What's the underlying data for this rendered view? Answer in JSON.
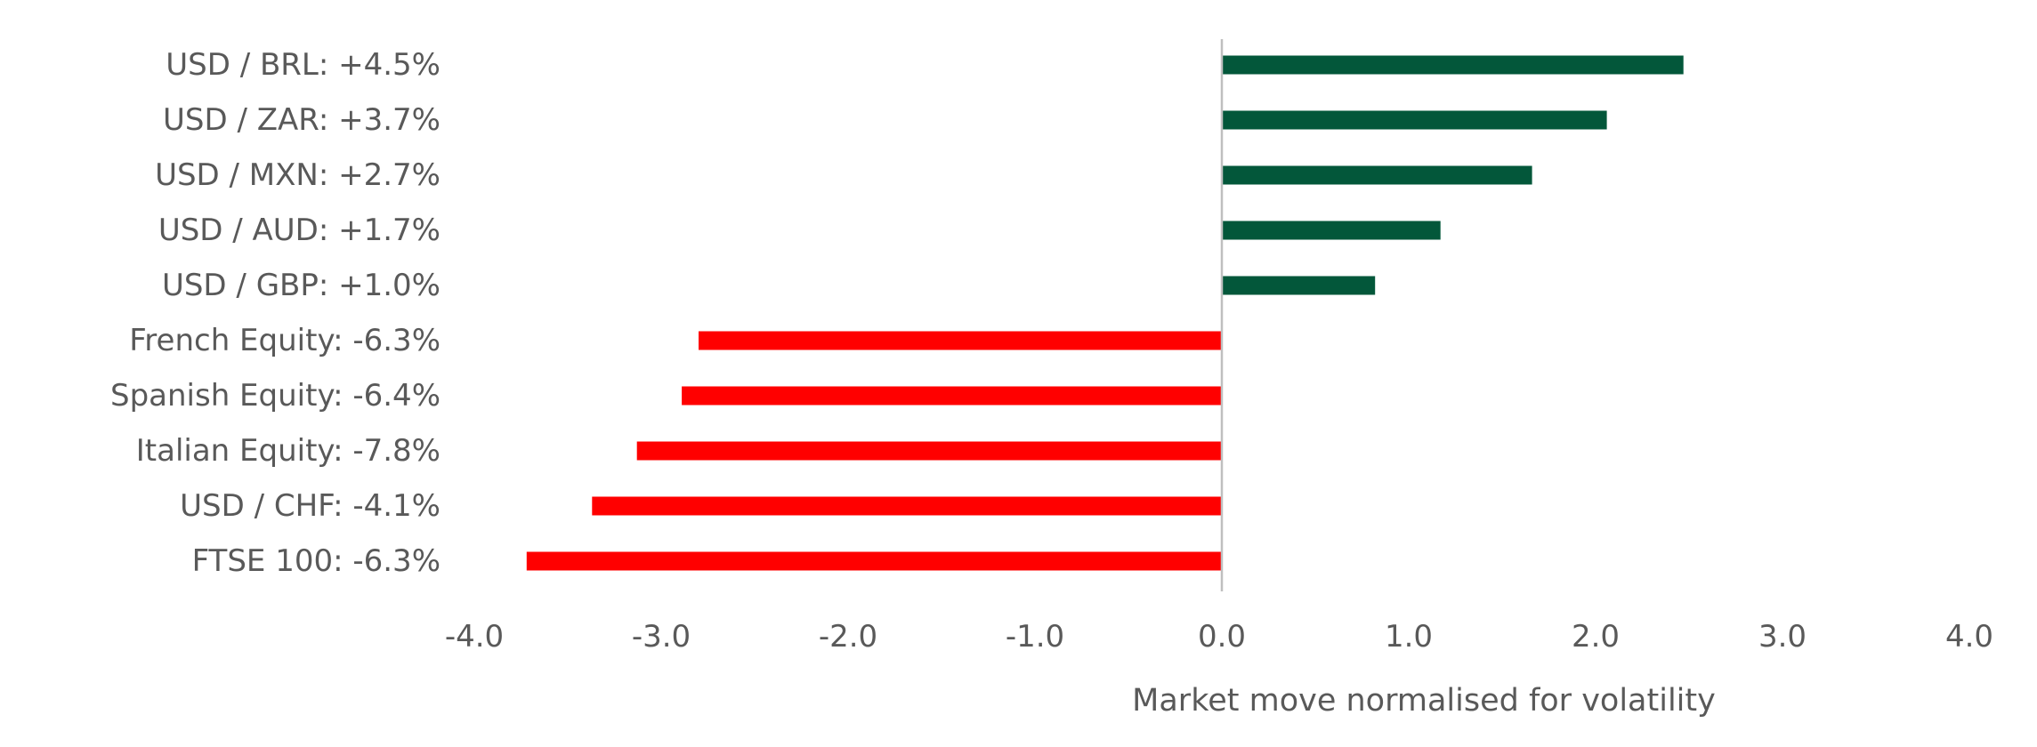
{
  "chart_data": {
    "type": "bar",
    "orientation": "horizontal",
    "title": "",
    "xlabel": "Market move normalised for volatility",
    "ylabel": "",
    "xlim": [
      -4.0,
      4.0
    ],
    "xticks": [
      "-4.0",
      "-3.0",
      "-2.0",
      "-1.0",
      "0.0",
      "1.0",
      "2.0",
      "3.0",
      "4.0"
    ],
    "xtick_values": [
      -4,
      -3,
      -2,
      -1,
      0,
      1,
      2,
      3,
      4
    ],
    "grid": false,
    "legend": "none",
    "categories": [
      "USD / BRL: +4.5%",
      "USD / ZAR: +3.7%",
      "USD / MXN: +2.7%",
      "USD / AUD: +1.7%",
      "USD / GBP: +1.0%",
      "French Equity: -6.3%",
      "Spanish Equity: -6.4%",
      "Italian Equity: -7.8%",
      "USD / CHF: -4.1%",
      "FTSE 100: -6.3%"
    ],
    "values": [
      2.47,
      2.06,
      1.66,
      1.17,
      0.82,
      -2.8,
      -2.89,
      -3.13,
      -3.37,
      -3.72
    ],
    "colors": {
      "positive": "#03573A",
      "negative": "#FF0000",
      "zero_line": "#BFBFBF",
      "text": "#595959"
    }
  }
}
